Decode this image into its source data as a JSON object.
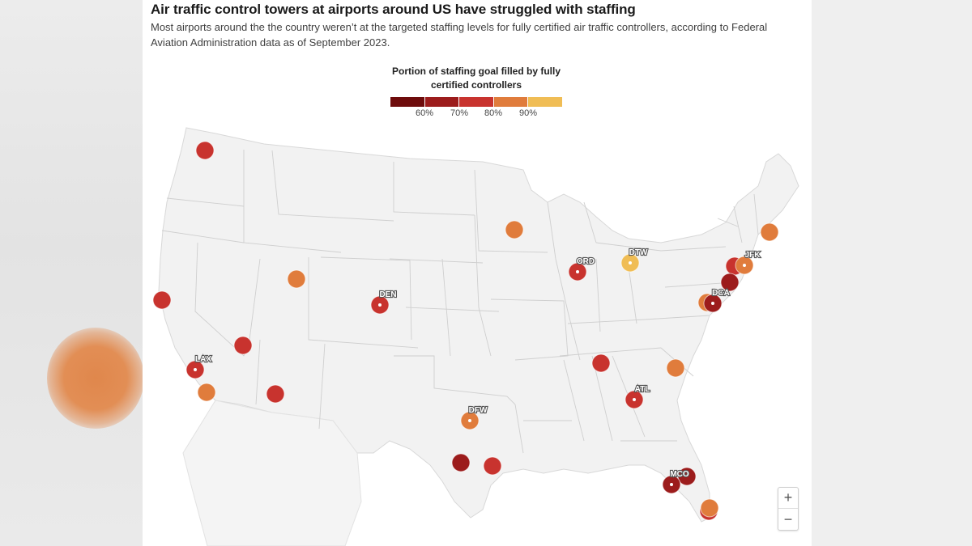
{
  "title": "Air traffic control towers at airports around US have struggled with staffing",
  "subtitle": "Most airports around the the country weren’t at the targeted staffing levels for fully certified air traffic controllers, according to Federal Aviation Administration data as of September 2023.",
  "legend": {
    "title_line1": "Portion of staffing goal filled by fully",
    "title_line2": "certified controllers",
    "colors": [
      "#6e0c0c",
      "#9c1c1c",
      "#c8332e",
      "#e07c3c",
      "#f0bd55"
    ],
    "ticks": [
      "60%",
      "70%",
      "80%",
      "90%"
    ]
  },
  "colors": {
    "land": "#f2f2f2",
    "border": "#cfcfcf"
  },
  "airports": [
    {
      "code": "",
      "color": "#c8332e"
    },
    {
      "code": "",
      "color": "#c8332e"
    },
    {
      "code": "LAX",
      "color": "#c8332e"
    },
    {
      "code": "",
      "color": "#e07c3c"
    },
    {
      "code": "",
      "color": "#c8332e"
    },
    {
      "code": "",
      "color": "#c8332e"
    },
    {
      "code": "",
      "color": "#e07c3c"
    },
    {
      "code": "DEN",
      "color": "#c8332e"
    },
    {
      "code": "DFW",
      "color": "#e07c3c"
    },
    {
      "code": "",
      "color": "#9c1c1c"
    },
    {
      "code": "",
      "color": "#c8332e"
    },
    {
      "code": "",
      "color": "#e07c3c"
    },
    {
      "code": "ORD",
      "color": "#c8332e"
    },
    {
      "code": "DTW",
      "color": "#f0bd55"
    },
    {
      "code": "",
      "color": "#c8332e"
    },
    {
      "code": "ATL",
      "color": "#c8332e"
    },
    {
      "code": "",
      "color": "#e07c3c"
    },
    {
      "code": "",
      "color": "#e07c3c"
    },
    {
      "code": "",
      "color": "#c8332e"
    },
    {
      "code": "JFK",
      "color": "#e07c3c"
    },
    {
      "code": "",
      "color": "#9c1c1c"
    },
    {
      "code": "",
      "color": "#e07c3c"
    },
    {
      "code": "DCA",
      "color": "#9c1c1c"
    },
    {
      "code": "",
      "color": "#9c1c1c"
    },
    {
      "code": "MCO",
      "color": "#9c1c1c"
    },
    {
      "code": "",
      "color": "#c8332e"
    },
    {
      "code": "",
      "color": "#e07c3c"
    }
  ],
  "zoom": {
    "in_label": "+",
    "out_label": "−"
  }
}
